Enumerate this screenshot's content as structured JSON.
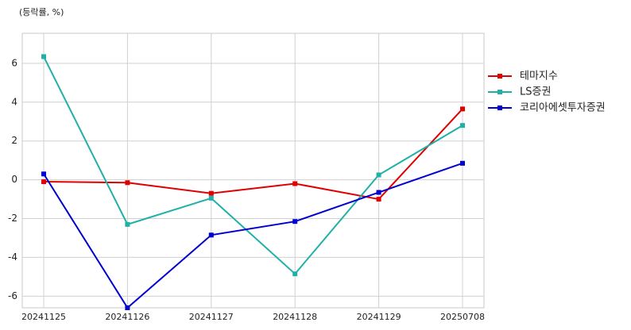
{
  "chart_data": {
    "type": "line",
    "subtitle": "(등락률, %)",
    "categories": [
      "20241125",
      "20241126",
      "20241127",
      "20241128",
      "20241129",
      "20250708"
    ],
    "series": [
      {
        "name": "테마지수",
        "color": "#e00000",
        "values": [
          -0.1,
          -0.15,
          -0.7,
          -0.2,
          -1.0,
          3.65
        ]
      },
      {
        "name": "LS증권",
        "color": "#20b0a8",
        "values": [
          6.35,
          -2.3,
          -0.95,
          -4.85,
          0.25,
          2.8
        ]
      },
      {
        "name": "코리아에셋투자증권",
        "color": "#0000d0",
        "values": [
          0.3,
          -6.6,
          -2.85,
          -2.15,
          -0.65,
          0.85
        ]
      }
    ],
    "ylim": [
      -6.6,
      7.55
    ],
    "yticks": [
      -6,
      -4,
      -2,
      0,
      2,
      4,
      6
    ],
    "grid": true,
    "legend": "right"
  }
}
